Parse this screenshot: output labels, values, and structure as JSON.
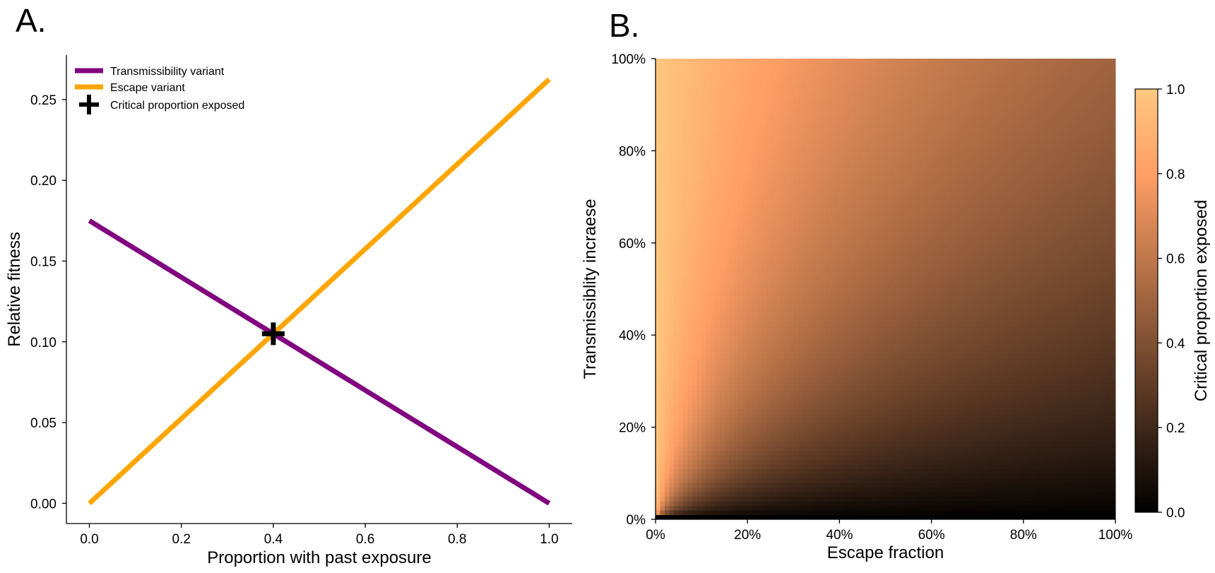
{
  "panel_labels": {
    "a": "A.",
    "b": "B."
  },
  "chart_data": [
    {
      "type": "line",
      "xlabel": "Proportion with past exposure",
      "ylabel": "Relative fitness",
      "xlim": [
        -0.05,
        1.05
      ],
      "ylim": [
        -0.0125,
        0.2775
      ],
      "xticks": [
        0.0,
        0.2,
        0.4,
        0.6,
        0.8,
        1.0
      ],
      "xtick_labels": [
        "0.0",
        "0.2",
        "0.4",
        "0.6",
        "0.8",
        "1.0"
      ],
      "yticks": [
        0.0,
        0.05,
        0.1,
        0.15,
        0.2,
        0.25
      ],
      "ytick_labels": [
        "0.00",
        "0.05",
        "0.10",
        "0.15",
        "0.20",
        "0.25"
      ],
      "legend_position": "top-left",
      "series": [
        {
          "name": "Transmissibility variant",
          "color": "#800080",
          "x": [
            0.0,
            1.0
          ],
          "y": [
            0.175,
            0.0
          ]
        },
        {
          "name": "Escape variant",
          "color": "#FFA500",
          "x": [
            0.0,
            1.0
          ],
          "y": [
            0.0,
            0.2625
          ]
        }
      ],
      "markers": [
        {
          "name": "Critical proportion exposed",
          "x": 0.4,
          "y": 0.105,
          "symbol": "plus",
          "color": "#000000"
        }
      ]
    },
    {
      "type": "heatmap",
      "xlabel": "Escape fraction",
      "ylabel": "Transmissiblity incraese",
      "xlim": [
        0,
        100
      ],
      "ylim": [
        0,
        100
      ],
      "xticks": [
        0,
        20,
        40,
        60,
        80,
        100
      ],
      "xtick_labels": [
        "0%",
        "20%",
        "40%",
        "60%",
        "80%",
        "100%"
      ],
      "yticks": [
        0,
        20,
        40,
        60,
        80,
        100
      ],
      "ytick_labels": [
        "0%",
        "20%",
        "40%",
        "60%",
        "80%",
        "100%"
      ],
      "grid_size": [
        100,
        100
      ],
      "value_formula": "critical proportion exposed = t / (t + e), t = transmissibility increase, e = escape fraction",
      "colormap": "copper",
      "colorbar": {
        "label": "Critical proportion exposed",
        "range": [
          0.0,
          1.0
        ],
        "ticks": [
          0.0,
          0.2,
          0.4,
          0.6,
          0.8,
          1.0
        ],
        "tick_labels": [
          "0.0",
          "0.2",
          "0.4",
          "0.6",
          "0.8",
          "1.0"
        ]
      }
    }
  ]
}
